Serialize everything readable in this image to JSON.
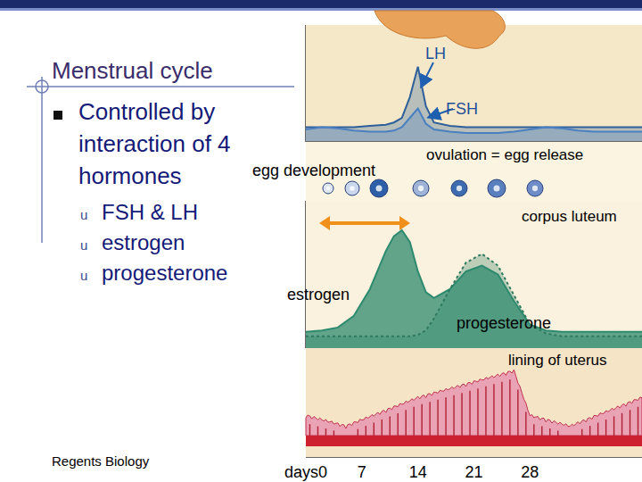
{
  "slide": {
    "title": "Menstrual cycle",
    "bullet_lines": [
      "Controlled by",
      "interaction of 4",
      "hormones"
    ],
    "sub_bullet_marker": "u",
    "sub_bullets": [
      "FSH & LH",
      "estrogen",
      "progesterone"
    ],
    "footer": "Regents Biology"
  },
  "labels": {
    "egg_development": "egg development",
    "ovulation": "ovulation = egg release",
    "corpus_luteum": "corpus luteum",
    "lining": "lining of uterus"
  },
  "chart_data": [
    {
      "type": "line",
      "x": [
        0,
        2,
        4,
        6,
        8,
        10,
        11,
        12,
        13,
        14,
        15,
        16,
        18,
        20,
        22,
        24,
        26,
        28,
        30,
        32,
        34,
        36,
        38,
        40,
        42
      ],
      "xlim": [
        0,
        42
      ],
      "ylim": [
        0,
        100
      ],
      "tick_labels": false,
      "series": [
        {
          "name": "LH",
          "color": "#2f5f9a",
          "values": [
            12,
            12,
            12,
            12,
            13,
            14,
            16,
            20,
            38,
            64,
            30,
            16,
            13,
            12,
            12,
            12,
            12,
            12,
            12,
            12,
            12,
            12,
            12,
            12,
            12
          ]
        },
        {
          "name": "FSH",
          "color": "#4a7fc0",
          "values": [
            10,
            12,
            11,
            9,
            8,
            8,
            9,
            12,
            20,
            28,
            15,
            10,
            8,
            7,
            7,
            7,
            8,
            10,
            12,
            11,
            9,
            8,
            8,
            8,
            8
          ]
        }
      ]
    },
    {
      "type": "line",
      "x": [
        0,
        2,
        4,
        6,
        8,
        10,
        11,
        12,
        13,
        14,
        15,
        16,
        18,
        20,
        22,
        24,
        26,
        28,
        30,
        32,
        34,
        36,
        38,
        40,
        42
      ],
      "xlim": [
        0,
        42
      ],
      "xticks": [
        {
          "value": 0,
          "label": "days0"
        },
        7,
        14,
        21,
        28
      ],
      "ylim": [
        0,
        100
      ],
      "tick_labels": "x",
      "series": [
        {
          "name": "estrogen",
          "color": "#2e8a6e",
          "values": [
            11,
            12,
            14,
            22,
            40,
            66,
            76,
            80,
            72,
            52,
            38,
            34,
            40,
            52,
            56,
            50,
            32,
            16,
            12,
            11,
            11,
            11,
            11,
            11,
            11
          ]
        },
        {
          "name": "progesterone",
          "color": "#2e7a60",
          "line_style": "dotted",
          "values": [
            8,
            8,
            8,
            8,
            8,
            8,
            8,
            8,
            8,
            9,
            12,
            20,
            40,
            58,
            64,
            56,
            36,
            16,
            10,
            8,
            8,
            8,
            8,
            8,
            8
          ]
        }
      ]
    }
  ]
}
